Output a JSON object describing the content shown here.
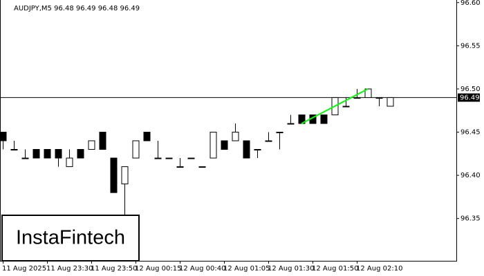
{
  "chart_data": {
    "type": "candlestick",
    "title": "AUDJPY,M5  96.48 96.49 96.48 96.49",
    "logo": "InstaFintech",
    "categories": [
      "11 Aug 2025",
      null,
      null,
      null,
      "11 Aug 23:30",
      null,
      null,
      null,
      "11 Aug 23:50",
      null,
      null,
      null,
      "12 Aug 00:15",
      null,
      null,
      null,
      "12 Aug 00:40",
      null,
      null,
      null,
      "12 Aug 01:05",
      null,
      null,
      null,
      "12 Aug 01:30",
      null,
      null,
      null,
      "12 Aug 01:50",
      null,
      null,
      null,
      "12 Aug 02:10",
      null,
      null,
      null
    ],
    "open": [
      96.45,
      96.43,
      96.42,
      96.43,
      96.43,
      96.43,
      96.41,
      96.43,
      96.43,
      96.45,
      96.42,
      96.39,
      96.42,
      96.45,
      96.42,
      96.42,
      96.41,
      96.42,
      96.41,
      96.42,
      96.44,
      96.44,
      96.44,
      96.43,
      96.44,
      96.45,
      96.46,
      96.47,
      96.47,
      96.47,
      96.47,
      96.48,
      96.49,
      96.49,
      96.49,
      96.48
    ],
    "high": [
      96.45,
      96.44,
      96.43,
      96.43,
      96.43,
      96.43,
      96.43,
      96.43,
      96.44,
      96.45,
      96.42,
      96.41,
      96.44,
      96.45,
      96.44,
      96.42,
      96.42,
      96.42,
      96.41,
      96.45,
      96.44,
      96.46,
      96.44,
      96.43,
      96.45,
      96.45,
      96.47,
      96.47,
      96.47,
      96.47,
      96.49,
      96.49,
      96.5,
      96.5,
      96.49,
      96.49
    ],
    "low": [
      96.43,
      96.43,
      96.42,
      96.42,
      96.42,
      96.41,
      96.41,
      96.42,
      96.43,
      96.43,
      96.38,
      96.35,
      96.42,
      96.44,
      96.42,
      96.42,
      96.41,
      96.42,
      96.41,
      96.42,
      96.43,
      96.44,
      96.42,
      96.42,
      96.44,
      96.43,
      96.46,
      96.46,
      96.46,
      96.46,
      96.47,
      96.48,
      96.49,
      96.49,
      96.48,
      96.48
    ],
    "close": [
      96.44,
      96.43,
      96.42,
      96.42,
      96.42,
      96.42,
      96.42,
      96.42,
      96.44,
      96.43,
      96.38,
      96.41,
      96.44,
      96.44,
      96.42,
      96.42,
      96.41,
      96.42,
      96.41,
      96.45,
      96.43,
      96.45,
      96.42,
      96.43,
      96.44,
      96.45,
      96.46,
      96.46,
      96.46,
      96.46,
      96.49,
      96.48,
      96.49,
      96.5,
      96.49,
      96.49
    ],
    "up_color": "#ffffff",
    "down_color": "#000000",
    "last_price": 96.49,
    "trendline": {
      "color": "#00ff00",
      "from_index": 27,
      "to_index": 33,
      "values": [
        96.46,
        96.5
      ]
    },
    "ylim": [
      96.301,
      96.603
    ],
    "yticks": [
      96.35,
      {
        "value": 96.4,
        "label": "96.40"
      },
      96.45,
      {
        "value": 96.5,
        "label": "96.50"
      },
      96.55,
      {
        "value": 96.6,
        "label": "96.60"
      }
    ]
  }
}
